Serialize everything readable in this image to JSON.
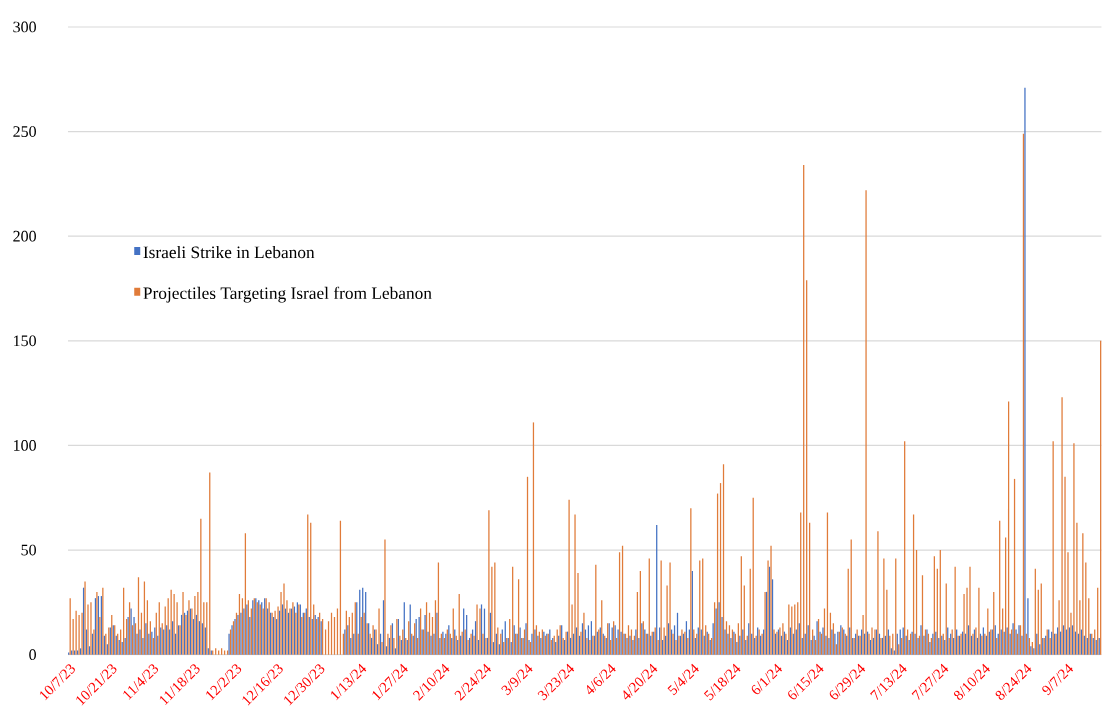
{
  "chart_data": {
    "type": "bar",
    "categories": [
      "10/7/23",
      null,
      null,
      null,
      null,
      null,
      null,
      null,
      null,
      null,
      null,
      null,
      null,
      null,
      "10/21/23",
      null,
      null,
      null,
      null,
      null,
      null,
      null,
      null,
      null,
      null,
      null,
      null,
      null,
      "11/4/23",
      null,
      null,
      null,
      null,
      null,
      null,
      null,
      null,
      null,
      null,
      null,
      null,
      null,
      "11/18/23",
      null,
      null,
      null,
      null,
      null,
      null,
      null,
      null,
      null,
      null,
      null,
      null,
      null,
      "12/2/23",
      null,
      null,
      null,
      null,
      null,
      null,
      null,
      null,
      null,
      null,
      null,
      null,
      null,
      "12/16/23",
      null,
      null,
      null,
      null,
      null,
      null,
      null,
      null,
      null,
      null,
      null,
      null,
      null,
      "12/30/23",
      null,
      null,
      null,
      null,
      null,
      null,
      null,
      null,
      null,
      null,
      null,
      null,
      null,
      "1/13/24",
      null,
      null,
      null,
      null,
      null,
      null,
      null,
      null,
      null,
      null,
      null,
      null,
      null,
      "1/27/24",
      null,
      null,
      null,
      null,
      null,
      null,
      null,
      null,
      null,
      null,
      null,
      null,
      null,
      "2/10/24",
      null,
      null,
      null,
      null,
      null,
      null,
      null,
      null,
      null,
      null,
      null,
      null,
      null,
      "2/24/24",
      null,
      null,
      null,
      null,
      null,
      null,
      null,
      null,
      null,
      null,
      null,
      null,
      null,
      "3/9/24",
      null,
      null,
      null,
      null,
      null,
      null,
      null,
      null,
      null,
      null,
      null,
      null,
      null,
      "3/23/24",
      null,
      null,
      null,
      null,
      null,
      null,
      null,
      null,
      null,
      null,
      null,
      null,
      null,
      "4/6/24",
      null,
      null,
      null,
      null,
      null,
      null,
      null,
      null,
      null,
      null,
      null,
      null,
      null,
      "4/20/24",
      null,
      null,
      null,
      null,
      null,
      null,
      null,
      null,
      null,
      null,
      null,
      null,
      null,
      "5/4/24",
      null,
      null,
      null,
      null,
      null,
      null,
      null,
      null,
      null,
      null,
      null,
      null,
      null,
      "5/18/24",
      null,
      null,
      null,
      null,
      null,
      null,
      null,
      null,
      null,
      null,
      null,
      null,
      null,
      "6/1/24",
      null,
      null,
      null,
      null,
      null,
      null,
      null,
      null,
      null,
      null,
      null,
      null,
      null,
      "6/15/24",
      null,
      null,
      null,
      null,
      null,
      null,
      null,
      null,
      null,
      null,
      null,
      null,
      null,
      "6/29/24",
      null,
      null,
      null,
      null,
      null,
      null,
      null,
      null,
      null,
      null,
      null,
      null,
      null,
      "7/13/24",
      null,
      null,
      null,
      null,
      null,
      null,
      null,
      null,
      null,
      null,
      null,
      null,
      null,
      "7/27/24",
      null,
      null,
      null,
      null,
      null,
      null,
      null,
      null,
      null,
      null,
      null,
      null,
      null,
      "8/10/24",
      null,
      null,
      null,
      null,
      null,
      null,
      null,
      null,
      null,
      null,
      null,
      null,
      null,
      "8/24/24",
      null,
      null,
      null,
      null,
      null,
      null,
      null,
      null,
      null,
      null,
      null,
      null,
      null,
      "9/7/24",
      null,
      null,
      null,
      null,
      null,
      null,
      null,
      null,
      null,
      null,
      null
    ],
    "series": [
      {
        "name": "Israeli Strike in Lebanon",
        "color": "#4472c4",
        "values": [
          1,
          2,
          2,
          2,
          3,
          32,
          12,
          4,
          10,
          27,
          28,
          28,
          9,
          5,
          13,
          14,
          9,
          7,
          6,
          8,
          18,
          22,
          18,
          10,
          12,
          8,
          15,
          10,
          11,
          13,
          9,
          13,
          12,
          14,
          12,
          16,
          10,
          14,
          19,
          20,
          21,
          22,
          17,
          19,
          16,
          15,
          13,
          3,
          2,
          0,
          0,
          0,
          0,
          0,
          10,
          14,
          17,
          19,
          20,
          22,
          24,
          18,
          26,
          27,
          26,
          25,
          27,
          22,
          20,
          18,
          17,
          21,
          24,
          22,
          20,
          22,
          23,
          25,
          24,
          20,
          22,
          18,
          17,
          19,
          18,
          16,
          0,
          0,
          0,
          0,
          0,
          0,
          0,
          12,
          14,
          8,
          10,
          25,
          31,
          32,
          30,
          15,
          8,
          12,
          5,
          10,
          26,
          4,
          8,
          15,
          3,
          17,
          7,
          25,
          7,
          24,
          9,
          17,
          18,
          12,
          19,
          11,
          9,
          10,
          20,
          8,
          11,
          10,
          14,
          8,
          12,
          7,
          9,
          22,
          19,
          8,
          12,
          16,
          7,
          24,
          22,
          8,
          20,
          6,
          10,
          5,
          12,
          16,
          8,
          6,
          14,
          10,
          13,
          8,
          15,
          7,
          10,
          12,
          9,
          8,
          11,
          10,
          12,
          8,
          6,
          9,
          14,
          7,
          11,
          8,
          10,
          13,
          9,
          15,
          12,
          14,
          16,
          9,
          11,
          13,
          10,
          8,
          15,
          13,
          14,
          12,
          11,
          10,
          8,
          9,
          7,
          12,
          8,
          15,
          12,
          10,
          9,
          11,
          62,
          13,
          7,
          9,
          15,
          12,
          14,
          20,
          9,
          10,
          16,
          12,
          40,
          8,
          13,
          12,
          9,
          11,
          7,
          15,
          22,
          25,
          18,
          12,
          10,
          8,
          11,
          6,
          9,
          12,
          7,
          15,
          10,
          8,
          13,
          9,
          12,
          30,
          42,
          36,
          10,
          12,
          9,
          11,
          7,
          13,
          10,
          12,
          15,
          8,
          10,
          14,
          7,
          9,
          16,
          11,
          13,
          9,
          8,
          12,
          10,
          11,
          14,
          12,
          9,
          13,
          8,
          10,
          9,
          12,
          10,
          11,
          7,
          8,
          12,
          10,
          8,
          9,
          12,
          3,
          2,
          10,
          12,
          13,
          9,
          7,
          11,
          10,
          8,
          14,
          9,
          12,
          6,
          10,
          11,
          8,
          9,
          7,
          13,
          10,
          8,
          12,
          9,
          11,
          10,
          14,
          9,
          12,
          8,
          10,
          13,
          9,
          11,
          12,
          14,
          10,
          12,
          11,
          13,
          10,
          15,
          12,
          14,
          9,
          271,
          27,
          4,
          3,
          10,
          5,
          8,
          9,
          12,
          11,
          10,
          13,
          11,
          14,
          12,
          13,
          14,
          11,
          10,
          12,
          9,
          8,
          10,
          8,
          7,
          8
        ]
      },
      {
        "name": "Projectiles Targeting Israel from Lebanon",
        "color": "#e07b39",
        "values": [
          27,
          17,
          21,
          19,
          20,
          35,
          24,
          25,
          12,
          30,
          18,
          32,
          10,
          13,
          19,
          14,
          10,
          12,
          32,
          17,
          25,
          14,
          15,
          37,
          20,
          35,
          26,
          16,
          8,
          20,
          25,
          15,
          23,
          27,
          31,
          29,
          25,
          14,
          30,
          19,
          26,
          22,
          28,
          30,
          65,
          25,
          25,
          87,
          2,
          3,
          2,
          3,
          2,
          2,
          12,
          16,
          20,
          29,
          27,
          58,
          26,
          22,
          27,
          25,
          24,
          22,
          27,
          25,
          20,
          21,
          23,
          30,
          34,
          26,
          22,
          25,
          20,
          24,
          18,
          20,
          67,
          63,
          24,
          17,
          20,
          17,
          12,
          16,
          20,
          18,
          22,
          64,
          10,
          21,
          18,
          20,
          25,
          10,
          18,
          20,
          15,
          10,
          14,
          12,
          22,
          6,
          55,
          10,
          14,
          8,
          17,
          9,
          12,
          8,
          16,
          10,
          15,
          8,
          22,
          12,
          25,
          20,
          18,
          26,
          44,
          10,
          8,
          12,
          10,
          22,
          9,
          29,
          11,
          12,
          7,
          10,
          9,
          24,
          22,
          10,
          8,
          69,
          42,
          44,
          13,
          10,
          6,
          8,
          17,
          42,
          10,
          36,
          8,
          12,
          85,
          6,
          111,
          14,
          11,
          12,
          9,
          10,
          7,
          9,
          12,
          14,
          8,
          11,
          74,
          24,
          67,
          39,
          11,
          20,
          8,
          7,
          9,
          43,
          12,
          26,
          9,
          15,
          7,
          16,
          8,
          49,
          52,
          10,
          14,
          12,
          9,
          30,
          40,
          16,
          10,
          46,
          11,
          13,
          7,
          45,
          13,
          33,
          44,
          10,
          7,
          9,
          12,
          11,
          8,
          70,
          12,
          10,
          45,
          46,
          14,
          10,
          8,
          25,
          77,
          82,
          91,
          16,
          14,
          12,
          10,
          15,
          47,
          33,
          9,
          41,
          75,
          9,
          12,
          10,
          30,
          45,
          52,
          12,
          11,
          13,
          15,
          10,
          24,
          23,
          24,
          25,
          68,
          234,
          179,
          63,
          12,
          7,
          17,
          10,
          22,
          68,
          20,
          15,
          5,
          11,
          13,
          10,
          41,
          55,
          8,
          12,
          9,
          19,
          222,
          10,
          13,
          12,
          59,
          8,
          46,
          31,
          9,
          10,
          46,
          5,
          8,
          102,
          12,
          10,
          67,
          50,
          9,
          38,
          12,
          10,
          8,
          47,
          41,
          50,
          10,
          34,
          8,
          12,
          42,
          9,
          10,
          29,
          32,
          42,
          10,
          13,
          32,
          9,
          10,
          22,
          12,
          30,
          8,
          64,
          22,
          56,
          121,
          12,
          84,
          10,
          14,
          249,
          10,
          8,
          6,
          41,
          31,
          34,
          8,
          12,
          8,
          102,
          10,
          26,
          123,
          85,
          49,
          20,
          101,
          63,
          26,
          58,
          44,
          27,
          10,
          12,
          32,
          150
        ]
      }
    ],
    "ylim": [
      0,
      300
    ],
    "yticks": [
      0,
      50,
      100,
      150,
      200,
      250,
      300
    ],
    "grid": "y",
    "legend": "left"
  }
}
